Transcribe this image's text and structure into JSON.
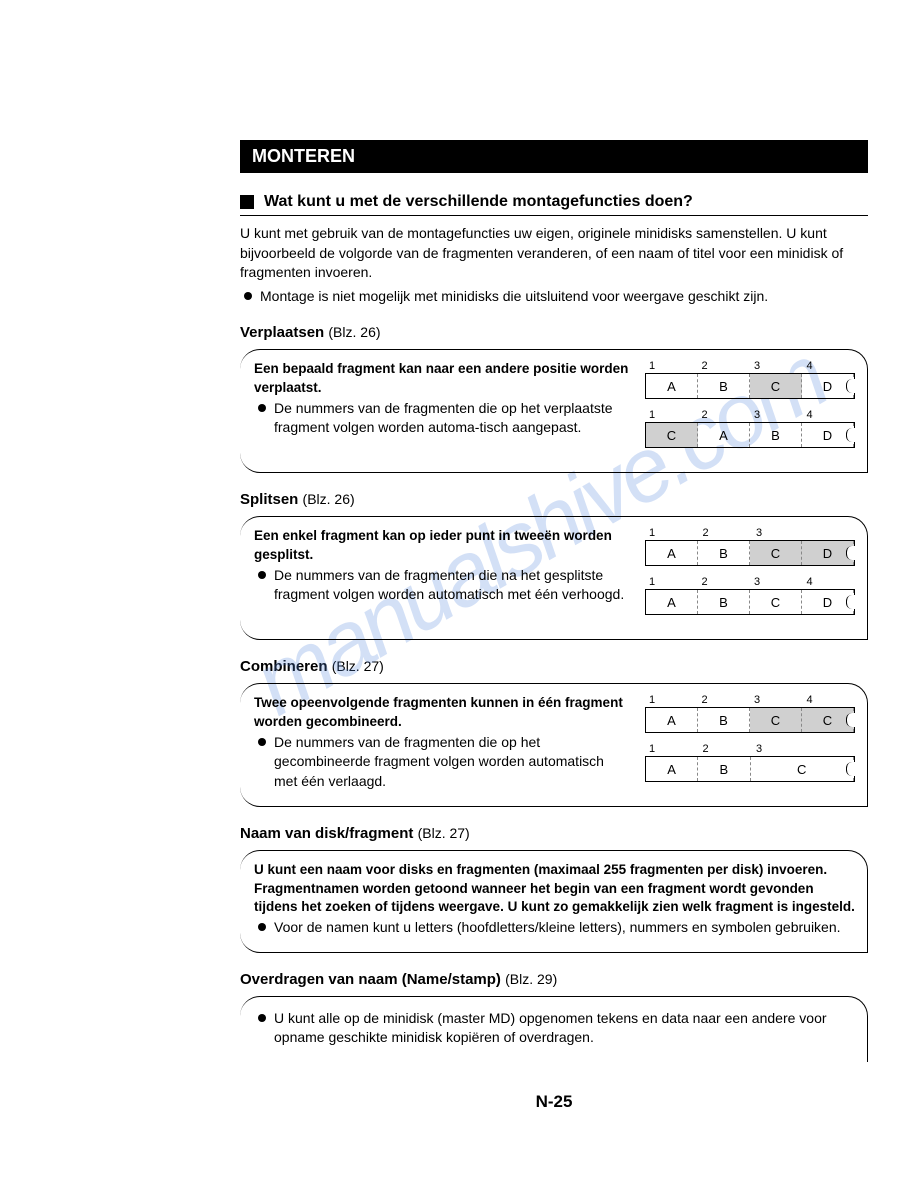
{
  "header": "MONTEREN",
  "subtitle": "Wat kunt u met de verschillende montagefuncties doen?",
  "intro1": "U kunt met gebruik van de montagefuncties uw eigen, originele minidisks samenstellen. U kunt bijvoorbeeld de volgorde van de fragmenten veranderen, of een naam of titel voor een minidisk of fragmenten invoeren.",
  "intro_bullet": "Montage is niet mogelijk met minidisks die uitsluitend voor weergave geschikt zijn.",
  "sections": {
    "verplaatsen": {
      "title": "Verplaatsen",
      "ref": "(Blz. 26)",
      "bold": "Een bepaald fragment kan naar een andere positie worden verplaatst.",
      "bullet": "De nummers van de fragmenten die op het verplaatste fragment volgen worden automa-tisch aangepast.",
      "row1_labels": [
        "1",
        "2",
        "3",
        "4"
      ],
      "row1_cells": [
        "A",
        "B",
        "C",
        "D"
      ],
      "row1_hl": [
        false,
        false,
        true,
        false
      ],
      "row2_labels": [
        "1",
        "2",
        "3",
        "4"
      ],
      "row2_cells": [
        "C",
        "A",
        "B",
        "D"
      ],
      "row2_hl": [
        true,
        false,
        false,
        false
      ]
    },
    "splitsen": {
      "title": "Splitsen",
      "ref": "(Blz. 26)",
      "bold": "Een enkel fragment kan op ieder punt in tweeën worden gesplitst.",
      "bullet": "De nummers van de fragmenten die na het gesplitste fragment volgen worden automatisch met één verhoogd.",
      "row1_labels": [
        "1",
        "2",
        "3"
      ],
      "row1_cells": [
        "A",
        "B",
        "C",
        "D"
      ],
      "row1_hl": [
        false,
        false,
        true,
        true
      ],
      "row2_labels": [
        "1",
        "2",
        "3",
        "4"
      ],
      "row2_cells": [
        "A",
        "B",
        "C",
        "D"
      ],
      "row2_hl": [
        false,
        false,
        false,
        false
      ]
    },
    "combineren": {
      "title": "Combineren",
      "ref": "(Blz. 27)",
      "bold": "Twee opeenvolgende fragmenten kunnen in één fragment worden gecombineerd.",
      "bullet": "De nummers van de fragmenten die op het gecombineerde fragment volgen worden automatisch met één verlaagd.",
      "row1_labels": [
        "1",
        "2",
        "3",
        "4"
      ],
      "row1_cells": [
        "A",
        "B",
        "C",
        "C"
      ],
      "row1_hl": [
        false,
        false,
        true,
        true
      ],
      "row2_labels": [
        "1",
        "2",
        "3"
      ],
      "row2_cells": [
        "A",
        "B",
        "C"
      ],
      "row2_hl": [
        false,
        false,
        false
      ]
    },
    "naam": {
      "title": "Naam van disk/fragment",
      "ref": "(Blz. 27)",
      "bold1": "U kunt een naam voor disks en fragmenten (maximaal 255 fragmenten per disk) invoeren.",
      "bold2": "Fragmentnamen worden getoond wanneer het begin van een fragment wordt gevonden tijdens het zoeken of tijdens weergave. U kunt zo gemakkelijk zien welk fragment is ingesteld.",
      "bullet": "Voor de namen kunt u letters (hoofdletters/kleine letters), nummers en symbolen gebruiken."
    },
    "overdragen": {
      "title": "Overdragen van naam (Name/stamp)",
      "ref": "(Blz. 29)",
      "bullet": "U kunt alle op de minidisk (master MD) opgenomen tekens en data naar een andere voor opname geschikte minidisk kopiëren of overdragen."
    }
  },
  "watermark": "manualshive.com",
  "page_number": "N-25"
}
